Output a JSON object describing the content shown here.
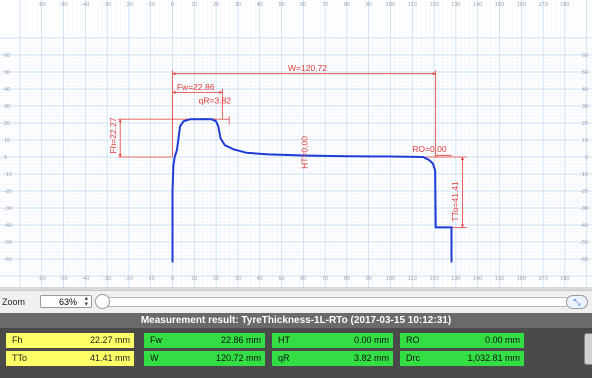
{
  "plot": {
    "x_ticks": [
      "-60",
      "-50",
      "-40",
      "-30",
      "-20",
      "-10",
      "0",
      "10",
      "20",
      "30",
      "40",
      "50",
      "60",
      "70",
      "80",
      "90",
      "100",
      "110",
      "120",
      "130",
      "140",
      "150",
      "160",
      "170",
      "180"
    ],
    "y_ticks": [
      "60",
      "50",
      "40",
      "30",
      "20",
      "10",
      "0",
      "-10",
      "-20",
      "-30",
      "-40",
      "-50",
      "-60"
    ],
    "dimensions": {
      "W": "W=120.72",
      "Fw": "Fw=22.86",
      "qR": "qR=3.82",
      "Fh": "Fh=22.27",
      "HT": "HT=0.00",
      "RO": "RO=0.00",
      "TTo": "TTo=41.41"
    },
    "colors": {
      "profile": "#1f3bd6",
      "dimension": "#e53935",
      "grid": "#cfe4f6"
    }
  },
  "zoom": {
    "label": "Zoom",
    "value": "63%"
  },
  "result": {
    "title": "Measurement result: TyreThickness-1L-RTo (2017-03-15 10:12:31)",
    "rows": [
      [
        {
          "label": "Fh",
          "value": "22.27 mm",
          "color": "yellow"
        },
        {
          "label": "Fw",
          "value": "22.86 mm",
          "color": "green"
        },
        {
          "label": "HT",
          "value": "0.00 mm",
          "color": "green"
        },
        {
          "label": "RO",
          "value": "0.00 mm",
          "color": "green"
        }
      ],
      [
        {
          "label": "TTo",
          "value": "41.41 mm",
          "color": "yellow"
        },
        {
          "label": "W",
          "value": "120.72 mm",
          "color": "green"
        },
        {
          "label": "qR",
          "value": "3.82 mm",
          "color": "green"
        },
        {
          "label": "Drc",
          "value": "1,032.81 mm",
          "color": "green"
        }
      ]
    ]
  }
}
